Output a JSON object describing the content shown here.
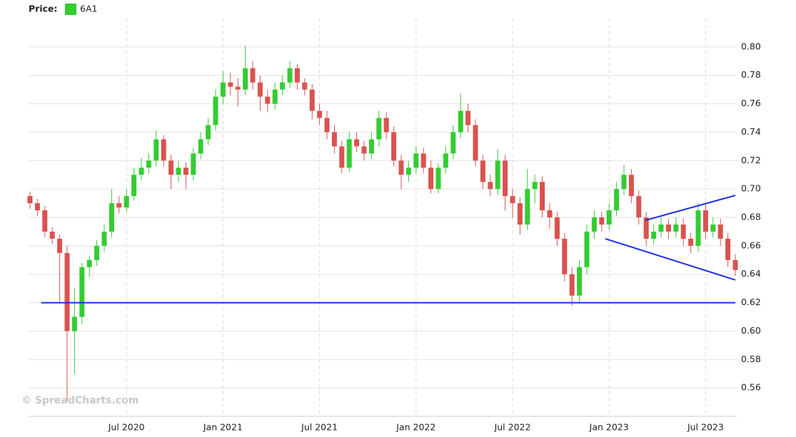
{
  "chart_data": {
    "type": "candlestick",
    "legend_title": "Price:",
    "watermark": "© SpreadCharts.com",
    "categories": [
      null,
      null,
      null,
      null,
      null,
      null,
      null,
      null,
      null,
      null,
      null,
      null,
      null,
      "Jul 2020",
      null,
      null,
      null,
      null,
      null,
      null,
      null,
      null,
      null,
      null,
      null,
      null,
      "Jan 2021",
      null,
      null,
      null,
      null,
      null,
      null,
      null,
      null,
      null,
      null,
      null,
      null,
      "Jul 2021",
      null,
      null,
      null,
      null,
      null,
      null,
      null,
      null,
      null,
      null,
      null,
      null,
      "Jan 2022",
      null,
      null,
      null,
      null,
      null,
      null,
      null,
      null,
      null,
      null,
      null,
      null,
      "Jul 2022",
      null,
      null,
      null,
      null,
      null,
      null,
      null,
      null,
      null,
      null,
      null,
      null,
      "Jan 2023",
      null,
      null,
      null,
      null,
      null,
      null,
      null,
      null,
      null,
      null,
      null,
      null,
      "Jul 2023",
      null,
      null,
      null,
      null
    ],
    "series": [
      {
        "name": "6A1",
        "color": "#33cc33",
        "down_color": "#d9534f",
        "open": [
          0.695,
          0.69,
          0.685,
          0.67,
          0.665,
          0.655,
          0.6,
          0.61,
          0.645,
          0.65,
          0.66,
          0.67,
          0.69,
          0.687,
          0.695,
          0.71,
          0.715,
          0.72,
          0.735,
          0.72,
          0.71,
          0.715,
          0.71,
          0.725,
          0.735,
          0.745,
          0.765,
          0.775,
          0.772,
          0.77,
          0.785,
          0.775,
          0.765,
          0.76,
          0.77,
          0.775,
          0.785,
          0.775,
          0.77,
          0.755,
          0.75,
          0.74,
          0.73,
          0.715,
          0.735,
          0.73,
          0.725,
          0.735,
          0.75,
          0.74,
          0.72,
          0.71,
          0.715,
          0.725,
          0.715,
          0.7,
          0.715,
          0.725,
          0.74,
          0.755,
          0.745,
          0.72,
          0.705,
          0.7,
          0.72,
          0.695,
          0.69,
          0.675,
          0.7,
          0.705,
          0.685,
          0.68,
          0.665,
          0.64,
          0.625,
          0.645,
          0.67,
          0.68,
          0.675,
          0.685,
          0.7,
          0.71,
          0.695,
          0.68,
          0.665,
          0.67,
          0.675,
          0.67,
          0.675,
          0.665,
          0.66,
          0.685,
          0.67,
          0.675,
          0.665,
          0.65
        ],
        "high": [
          0.698,
          0.693,
          0.688,
          0.673,
          0.668,
          0.66,
          0.63,
          0.648,
          0.653,
          0.664,
          0.675,
          0.7,
          0.695,
          0.7,
          0.715,
          0.722,
          0.725,
          0.741,
          0.738,
          0.724,
          0.72,
          0.719,
          0.729,
          0.74,
          0.75,
          0.77,
          0.783,
          0.782,
          0.778,
          0.801,
          0.79,
          0.78,
          0.77,
          0.775,
          0.78,
          0.79,
          0.788,
          0.778,
          0.774,
          0.76,
          0.755,
          0.745,
          0.734,
          0.74,
          0.74,
          0.734,
          0.74,
          0.755,
          0.754,
          0.744,
          0.724,
          0.72,
          0.73,
          0.729,
          0.72,
          0.718,
          0.73,
          0.745,
          0.767,
          0.76,
          0.749,
          0.724,
          0.71,
          0.728,
          0.724,
          0.7,
          0.694,
          0.714,
          0.71,
          0.709,
          0.69,
          0.684,
          0.669,
          0.645,
          0.65,
          0.675,
          0.685,
          0.684,
          0.69,
          0.705,
          0.717,
          0.714,
          0.699,
          0.684,
          0.675,
          0.68,
          0.679,
          0.68,
          0.679,
          0.669,
          0.69,
          0.69,
          0.68,
          0.679,
          0.669,
          0.654
        ],
        "low": [
          0.686,
          0.681,
          0.666,
          0.661,
          0.62,
          0.551,
          0.57,
          0.605,
          0.638,
          0.646,
          0.656,
          0.666,
          0.683,
          0.684,
          0.692,
          0.706,
          0.711,
          0.716,
          0.716,
          0.7,
          0.705,
          0.7,
          0.706,
          0.721,
          0.731,
          0.741,
          0.76,
          0.766,
          0.758,
          0.766,
          0.77,
          0.755,
          0.754,
          0.756,
          0.766,
          0.771,
          0.77,
          0.766,
          0.749,
          0.745,
          0.735,
          0.725,
          0.711,
          0.712,
          0.726,
          0.72,
          0.721,
          0.73,
          0.735,
          0.716,
          0.7,
          0.705,
          0.711,
          0.711,
          0.697,
          0.697,
          0.711,
          0.721,
          0.736,
          0.74,
          0.716,
          0.7,
          0.695,
          0.696,
          0.685,
          0.68,
          0.668,
          0.671,
          0.69,
          0.68,
          0.672,
          0.66,
          0.635,
          0.618,
          0.62,
          0.64,
          0.665,
          0.67,
          0.671,
          0.681,
          0.696,
          0.69,
          0.675,
          0.66,
          0.661,
          0.666,
          0.665,
          0.666,
          0.66,
          0.655,
          0.656,
          0.665,
          0.666,
          0.66,
          0.645,
          0.639
        ],
        "close": [
          0.69,
          0.685,
          0.67,
          0.665,
          0.655,
          0.6,
          0.61,
          0.645,
          0.65,
          0.66,
          0.67,
          0.69,
          0.687,
          0.695,
          0.71,
          0.715,
          0.72,
          0.735,
          0.72,
          0.71,
          0.715,
          0.71,
          0.725,
          0.735,
          0.745,
          0.765,
          0.775,
          0.772,
          0.77,
          0.785,
          0.775,
          0.765,
          0.76,
          0.77,
          0.775,
          0.785,
          0.775,
          0.77,
          0.755,
          0.75,
          0.74,
          0.73,
          0.715,
          0.735,
          0.73,
          0.725,
          0.735,
          0.75,
          0.74,
          0.72,
          0.71,
          0.715,
          0.725,
          0.715,
          0.7,
          0.715,
          0.725,
          0.74,
          0.755,
          0.745,
          0.72,
          0.705,
          0.7,
          0.72,
          0.695,
          0.69,
          0.675,
          0.7,
          0.705,
          0.685,
          0.68,
          0.665,
          0.64,
          0.625,
          0.645,
          0.67,
          0.68,
          0.675,
          0.685,
          0.7,
          0.71,
          0.695,
          0.68,
          0.665,
          0.67,
          0.675,
          0.67,
          0.675,
          0.665,
          0.66,
          0.685,
          0.67,
          0.675,
          0.665,
          0.65,
          0.643
        ]
      }
    ],
    "lines": [
      {
        "color": "#1f2fe8",
        "x": [
          1.5,
          95
        ],
        "y": [
          0.62,
          0.62
        ]
      },
      {
        "color": "#1f2fe8",
        "x": [
          82.9,
          95
        ],
        "y": [
          0.678,
          0.6955
        ]
      },
      {
        "color": "#1f2fe8",
        "x": [
          77.5,
          95
        ],
        "y": [
          0.665,
          0.636
        ]
      }
    ],
    "ylim": [
      0.54,
      0.82
    ],
    "yticks": [
      0.56,
      0.58,
      {
        "value": 0.6,
        "label": "0.60"
      },
      0.62,
      0.64,
      0.66,
      0.68,
      {
        "value": 0.7,
        "label": "0.70"
      },
      0.72,
      0.74,
      0.76,
      0.78,
      {
        "value": 0.8,
        "label": "0.80"
      }
    ],
    "grid": true
  }
}
